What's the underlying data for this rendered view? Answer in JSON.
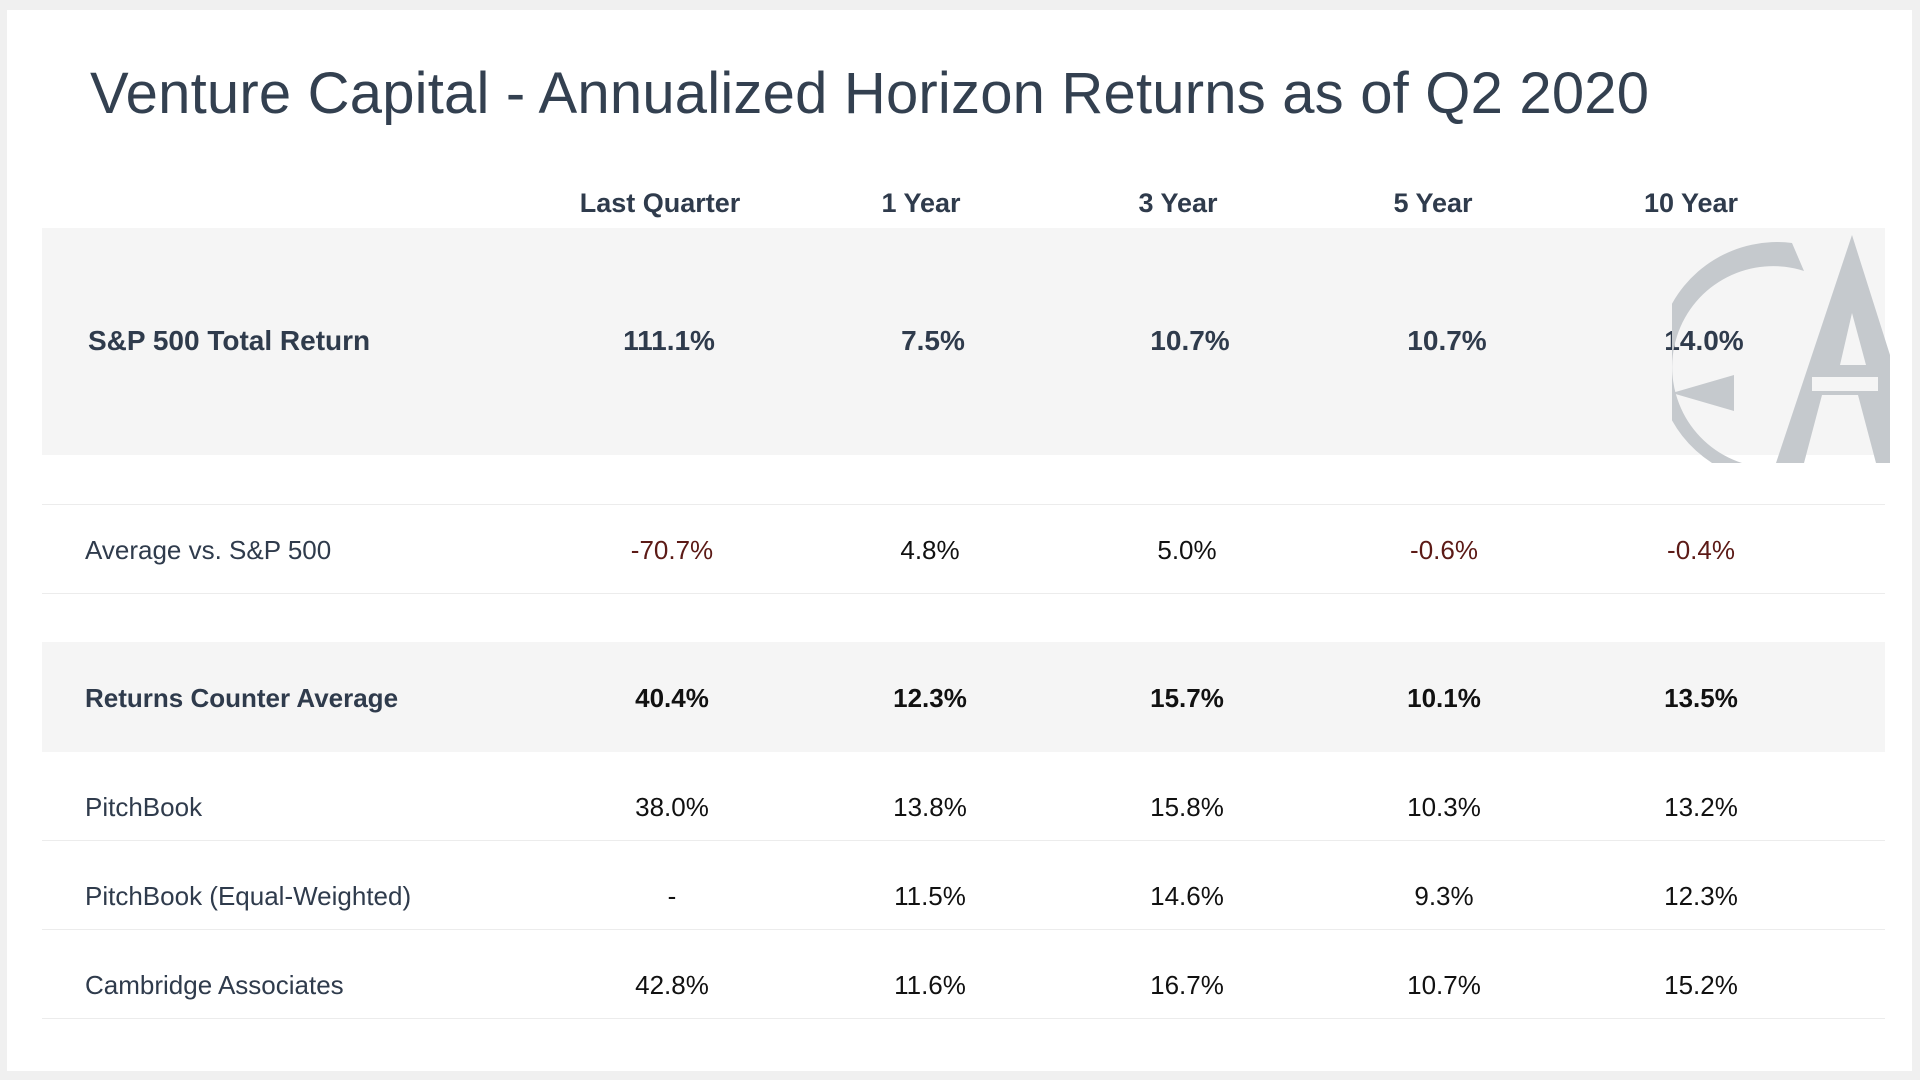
{
  "title": "Venture Capital - Annualized Horizon Returns as of Q2 2020",
  "columns": [
    "Last Quarter",
    "1 Year",
    "3 Year",
    "5 Year",
    "10 Year"
  ],
  "rows": {
    "sp500": {
      "label": "S&P 500 Total Return",
      "values": [
        "111.1%",
        "7.5%",
        "10.7%",
        "10.7%",
        "14.0%"
      ]
    },
    "avg_vs_sp": {
      "label": "Average vs. S&P 500",
      "values": [
        "-70.7%",
        "4.8%",
        "5.0%",
        "-0.6%",
        "-0.4%"
      ]
    },
    "counter_avg": {
      "label": "Returns Counter Average",
      "values": [
        "40.4%",
        "12.3%",
        "15.7%",
        "10.1%",
        "13.5%"
      ]
    },
    "pitchbook": {
      "label": "PitchBook",
      "values": [
        "38.0%",
        "13.8%",
        "15.8%",
        "10.3%",
        "13.2%"
      ]
    },
    "pitchbook_ew": {
      "label": "PitchBook (Equal-Weighted)",
      "values": [
        "-",
        "11.5%",
        "14.6%",
        "9.3%",
        "12.3%"
      ]
    },
    "cambridge": {
      "label": "Cambridge Associates",
      "values": [
        "42.8%",
        "11.6%",
        "16.7%",
        "10.7%",
        "15.2%"
      ]
    }
  },
  "colors": {
    "text": "#2f3b4c",
    "negative": "#5c1a16",
    "shade": "#f5f5f5",
    "logo": "#c5c9cd"
  },
  "logo_icon": "compass-a-logo-icon"
}
